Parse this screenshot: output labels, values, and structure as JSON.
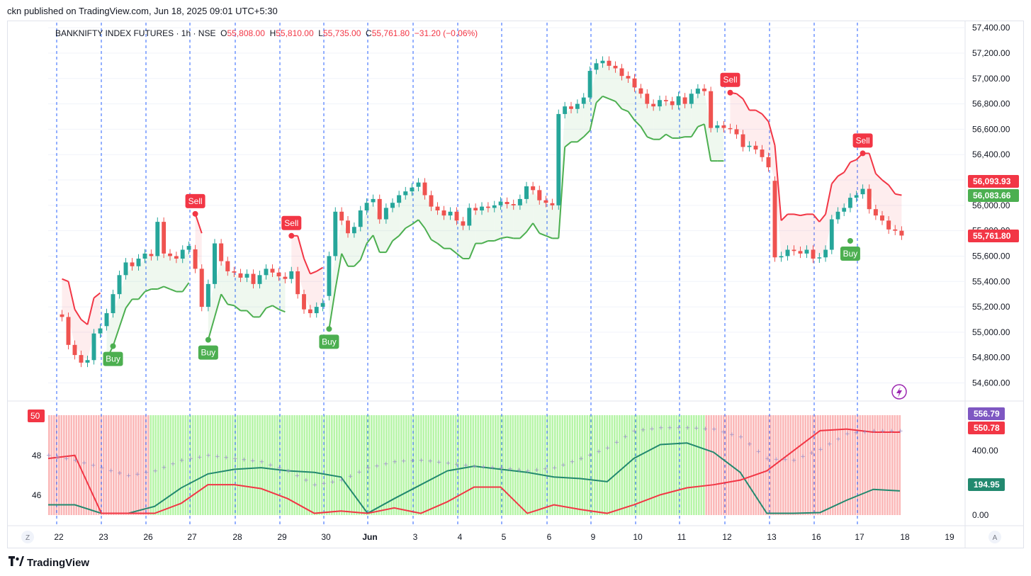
{
  "header": {
    "published": "ckn published on TradingView.com, Jun 18, 2025 09:01 UTC+5:30"
  },
  "legend": {
    "symbol": "BANKNIFTY INDEX FUTURES · 1h · NSE",
    "o_label": "O",
    "o": "55,808.00",
    "h_label": "H",
    "h": "55,810.00",
    "l_label": "L",
    "l": "55,735.00",
    "c_label": "C",
    "c": "55,761.80",
    "change": "−31.20 (−0.06%)"
  },
  "price_badges": [
    {
      "text": "56,093.93",
      "color": "#f23645"
    },
    {
      "text": "56,083.66",
      "color": "#4caf50"
    },
    {
      "text": "55,761.80",
      "color": "#f23645"
    }
  ],
  "osc_badges": [
    {
      "text": "556.79",
      "color": "#7e57c2"
    },
    {
      "text": "550.78",
      "color": "#f23645"
    },
    {
      "text": "194.95",
      "color": "#22896f"
    }
  ],
  "osc_left_labels": [
    "50",
    "48",
    "46"
  ],
  "osc_left_badge_color": "#f23645",
  "axis_buttons": {
    "left": "Z",
    "right": "A"
  },
  "footer": {
    "brand": "TradingView",
    "logo": "tradingview-logo-icon"
  },
  "colors": {
    "up": "#26a69a",
    "down": "#ef5350",
    "buy": "#4caf50",
    "sell": "#f23645",
    "osc_bg_bull": "#b7f5a8",
    "osc_bg_bear": "#fbb8b8"
  },
  "chart_data": [
    {
      "type": "candlestick",
      "title": "BANKNIFTY INDEX FUTURES · 1h · NSE",
      "y_ticks": [
        57400,
        57200,
        57000,
        56800,
        56600,
        56400,
        56200,
        56000,
        55800,
        55600,
        55400,
        55200,
        55000,
        54800,
        54600
      ],
      "y_tick_labels": [
        "57,400.00",
        "57,200.00",
        "57,000.00",
        "56,800.00",
        "56,600.00",
        "56,400.00",
        "56,200.00",
        "56,000.00",
        "55,800.00",
        "55,600.00",
        "55,400.00",
        "55,200.00",
        "55,000.00",
        "54,800.00",
        "54,600.00"
      ],
      "ylim": [
        54480,
        57440
      ],
      "x_tick_labels": [
        "22",
        "23",
        "26",
        "27",
        "28",
        "29",
        "30",
        "Jun",
        "3",
        "4",
        "5",
        "6",
        "9",
        "10",
        "11",
        "12",
        "13",
        "16",
        "17",
        "18",
        "19"
      ],
      "sessions": [
        {
          "label": "22",
          "closes": [
            55120,
            54900,
            54820,
            54760,
            54780,
            54990,
            55030
          ]
        },
        {
          "label": "23",
          "closes": [
            55150,
            55300,
            55450,
            55550,
            55520,
            55580,
            55620
          ]
        },
        {
          "label": "26",
          "closes": [
            55600,
            55870,
            55620,
            55600,
            55580,
            55650,
            55680
          ]
        },
        {
          "label": "27",
          "closes": [
            55500,
            55200,
            55380,
            55700,
            55560,
            55480,
            55470
          ]
        },
        {
          "label": "28",
          "closes": [
            55430,
            55460,
            55380,
            55450,
            55500,
            55470,
            55440
          ]
        },
        {
          "label": "29",
          "closes": [
            55420,
            55480,
            55300,
            55180,
            55150,
            55200,
            55230
          ]
        },
        {
          "label": "30",
          "closes": [
            55600,
            55950,
            55880,
            55780,
            55830,
            55960,
            56020
          ]
        },
        {
          "label": "Jun",
          "closes": [
            56050,
            55890,
            55980,
            56020,
            56080,
            56110,
            56140
          ]
        },
        {
          "label": "3",
          "closes": [
            56180,
            56080,
            55990,
            55960,
            55920,
            55950,
            55880
          ]
        },
        {
          "label": "4",
          "closes": [
            55840,
            55980,
            55960,
            55990,
            55980,
            56000,
            56030
          ]
        },
        {
          "label": "5",
          "closes": [
            56010,
            56000,
            56050,
            56150,
            56120,
            56040,
            56020
          ]
        },
        {
          "label": "6",
          "closes": [
            56000,
            56720,
            56780,
            56760,
            56800,
            56850,
            57060
          ]
        },
        {
          "label": "9",
          "closes": [
            57120,
            57140,
            57100,
            57080,
            57020,
            57000,
            56930
          ]
        },
        {
          "label": "10",
          "closes": [
            56880,
            56800,
            56780,
            56830,
            56820,
            56790,
            56860
          ]
        },
        {
          "label": "11",
          "closes": [
            56800,
            56880,
            56920,
            56900,
            56610,
            56630,
            56610
          ]
        },
        {
          "label": "12",
          "closes": [
            56600,
            56560,
            56460,
            56470,
            56440,
            56380,
            56300
          ]
        },
        {
          "label": "13",
          "closes": [
            55590,
            55600,
            55650,
            55640,
            55620,
            55650,
            55580
          ]
        },
        {
          "label": "16",
          "closes": [
            55590,
            55650,
            55890,
            55950,
            55980,
            56060,
            56080
          ]
        },
        {
          "label": "17",
          "closes": [
            56130,
            55970,
            55920,
            55880,
            55810,
            55800,
            55762
          ]
        }
      ],
      "signals": [
        {
          "type": "Buy",
          "session": "23",
          "bar": 1
        },
        {
          "type": "Sell",
          "session": "27",
          "bar": 0
        },
        {
          "type": "Buy",
          "session": "27",
          "bar": 2
        },
        {
          "type": "Sell",
          "session": "29",
          "bar": 1
        },
        {
          "type": "Buy",
          "session": "30",
          "bar": 0
        },
        {
          "type": "Sell",
          "session": "12",
          "bar": 0
        },
        {
          "type": "Buy",
          "session": "16",
          "bar": 5
        },
        {
          "type": "Sell",
          "session": "17",
          "bar": 0
        }
      ]
    },
    {
      "type": "line",
      "name_note": "oscillator panel",
      "y_ticks": [
        400,
        0
      ],
      "y_tick_labels": [
        "400.00",
        "0.00"
      ],
      "ylim": [
        -20,
        640
      ],
      "series": [
        {
          "color": "#22896f",
          "values": [
            60,
            60,
            5,
            5,
            50,
            170,
            260,
            290,
            300,
            280,
            270,
            240,
            5,
            100,
            190,
            280,
            310,
            290,
            270,
            240,
            230,
            210,
            360,
            450,
            460,
            400,
            270,
            5,
            5,
            10,
            90,
            160,
            150
          ]
        },
        {
          "color": "#f23645",
          "values": [
            360,
            380,
            5,
            5,
            5,
            70,
            190,
            190,
            165,
            100,
            5,
            20,
            5,
            40,
            5,
            80,
            175,
            175,
            5,
            60,
            30,
            5,
            60,
            125,
            170,
            190,
            220,
            280,
            410,
            540,
            550,
            530,
            530
          ]
        },
        {
          "color": "#9b8fc8",
          "values": [
            380,
            350,
            300,
            250,
            280,
            350,
            380,
            360,
            340,
            280,
            190,
            220,
            300,
            340,
            350,
            330,
            310,
            300,
            280,
            300,
            360,
            430,
            540,
            560,
            560,
            550,
            500,
            360,
            350,
            420,
            520,
            540,
            540
          ]
        }
      ]
    }
  ]
}
